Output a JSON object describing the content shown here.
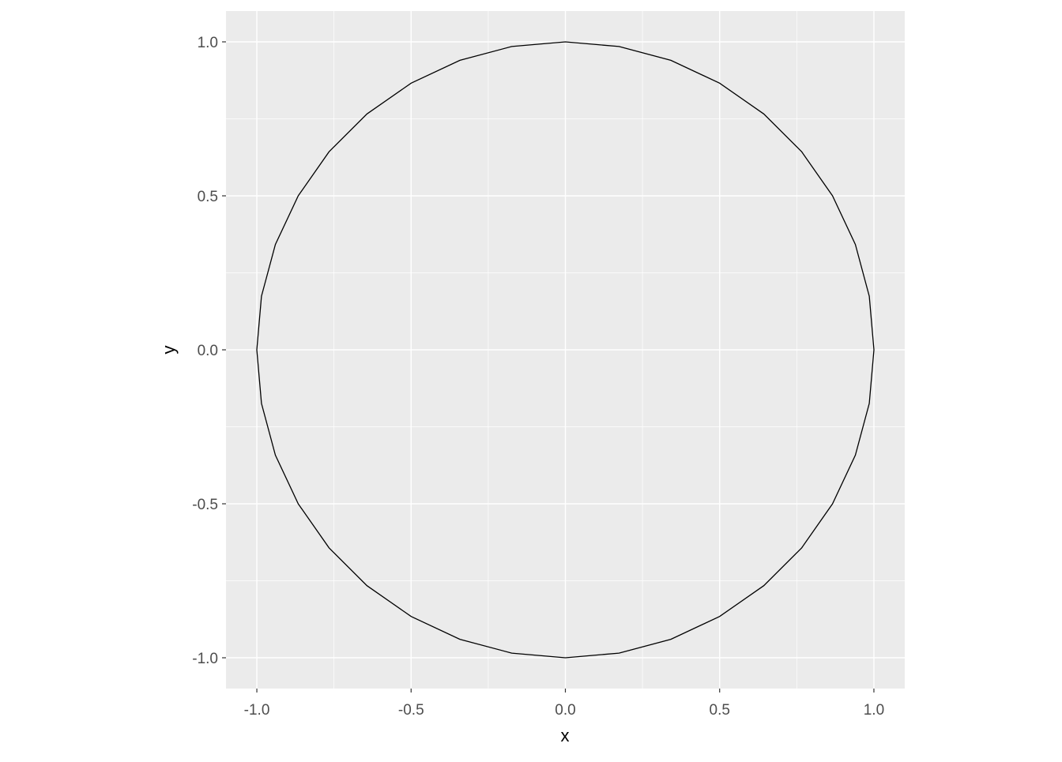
{
  "chart_data": {
    "type": "line",
    "title": "",
    "xlabel": "x",
    "ylabel": "y",
    "xlim": [
      -1.1,
      1.1
    ],
    "ylim": [
      -1.1,
      1.1
    ],
    "xticks": [
      -1.0,
      -0.5,
      0.0,
      0.5,
      1.0
    ],
    "yticks": [
      -1.0,
      -0.5,
      0.0,
      0.5,
      1.0
    ],
    "xtick_labels": [
      "-1.0",
      "-0.5",
      "0.0",
      "0.5",
      "1.0"
    ],
    "ytick_labels": [
      "-1.0",
      "-0.5",
      "0.0",
      "0.5",
      "1.0"
    ],
    "grid": true,
    "panel_background": "#EBEBEB",
    "line_color": "#000000",
    "series": [
      {
        "x": [
          1,
          0.985,
          0.94,
          0.866,
          0.766,
          0.643,
          0.5,
          0.342,
          0.174,
          0,
          -0.174,
          -0.342,
          -0.5,
          -0.643,
          -0.766,
          -0.866,
          -0.94,
          -0.985,
          -1,
          -0.985,
          -0.94,
          -0.866,
          -0.766,
          -0.643,
          -0.5,
          -0.342,
          -0.174,
          0,
          0.174,
          0.342,
          0.5,
          0.643,
          0.766,
          0.866,
          0.94,
          0.985,
          1
        ],
        "y": [
          0,
          0.174,
          0.342,
          0.5,
          0.643,
          0.766,
          0.866,
          0.94,
          0.985,
          1,
          0.985,
          0.94,
          0.866,
          0.766,
          0.643,
          0.5,
          0.342,
          0.174,
          0,
          -0.174,
          -0.342,
          -0.5,
          -0.643,
          -0.766,
          -0.866,
          -0.94,
          -0.985,
          -1,
          -0.985,
          -0.94,
          -0.866,
          -0.766,
          -0.643,
          -0.5,
          -0.342,
          -0.174,
          0
        ]
      }
    ]
  }
}
